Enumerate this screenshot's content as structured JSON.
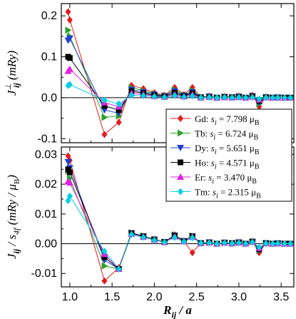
{
  "chart_data": [
    {
      "type": "line",
      "panel": "top",
      "ylabel": {
        "base": "J",
        "sup": "⊥",
        "sub": "ij",
        "unit": "(mRy)"
      },
      "ylim": [
        -0.11,
        0.23
      ],
      "xlim": [
        0.9,
        3.65
      ],
      "yticks": [
        -0.1,
        0.0,
        0.1,
        0.2
      ],
      "ytick_labels": [
        "-0.1",
        "0.0",
        "0.1",
        "0.2"
      ],
      "zero_line": true,
      "legend_position": "lower-right",
      "series": [
        {
          "name": "Gd",
          "moment": "s_i = 7.798 μ_B",
          "color": "#e41a1c",
          "marker": "diamond",
          "x": [
            0.98,
            1.0,
            1.41,
            1.58,
            1.73,
            1.87,
            2.0,
            2.12,
            2.24,
            2.35,
            2.45,
            2.55,
            2.65,
            2.74,
            2.83,
            2.92,
            3.0,
            3.08,
            3.16,
            3.24,
            3.32,
            3.4,
            3.46,
            3.54,
            3.61
          ],
          "y": [
            0.21,
            0.19,
            -0.09,
            -0.06,
            0.03,
            0.022,
            0.012,
            0.006,
            0.025,
            0.008,
            0.025,
            0.001,
            0.004,
            0.0,
            0.003,
            0.001,
            0.004,
            0.0,
            0.006,
            -0.022,
            0.002,
            0.0,
            0.001,
            0.0,
            0.0
          ]
        },
        {
          "name": "Tb",
          "moment": "s_i = 6.724 μ_B",
          "color": "#2ca02c",
          "marker": "triangle-right",
          "x": [
            0.98,
            1.0,
            1.41,
            1.58,
            1.73,
            1.87,
            2.0,
            2.12,
            2.24,
            2.35,
            2.45,
            2.55,
            2.65,
            2.74,
            2.83,
            2.92,
            3.0,
            3.08,
            3.16,
            3.24,
            3.32,
            3.4,
            3.46,
            3.54,
            3.61
          ],
          "y": [
            0.165,
            0.15,
            -0.048,
            -0.045,
            0.025,
            0.017,
            0.01,
            0.005,
            0.02,
            0.006,
            0.018,
            0.001,
            0.003,
            0.0,
            0.002,
            0.001,
            0.003,
            0.0,
            0.005,
            -0.015,
            0.001,
            0.0,
            0.001,
            0.0,
            0.0
          ]
        },
        {
          "name": "Dy",
          "moment": "s_i = 5.651 μ_B",
          "color": "#1f3fcf",
          "marker": "triangle-down",
          "x": [
            0.98,
            1.0,
            1.41,
            1.58,
            1.73,
            1.87,
            2.0,
            2.12,
            2.24,
            2.35,
            2.45,
            2.55,
            2.65,
            2.74,
            2.83,
            2.92,
            3.0,
            3.08,
            3.16,
            3.24,
            3.32,
            3.4,
            3.46,
            3.54,
            3.61
          ],
          "y": [
            0.14,
            0.145,
            -0.03,
            -0.038,
            0.02,
            0.014,
            0.008,
            0.004,
            0.016,
            0.005,
            0.014,
            0.001,
            0.003,
            0.0,
            0.002,
            0.001,
            0.003,
            0.0,
            0.004,
            -0.012,
            0.001,
            0.0,
            0.001,
            0.0,
            0.0
          ]
        },
        {
          "name": "Ho",
          "moment": "s_i = 4.571 μ_B",
          "color": "#000000",
          "marker": "square",
          "x": [
            0.98,
            1.0,
            1.41,
            1.58,
            1.73,
            1.87,
            2.0,
            2.12,
            2.24,
            2.35,
            2.45,
            2.55,
            2.65,
            2.74,
            2.83,
            2.92,
            3.0,
            3.08,
            3.16,
            3.24,
            3.32,
            3.4,
            3.46,
            3.54,
            3.61
          ],
          "y": [
            0.1,
            0.097,
            -0.02,
            -0.03,
            0.016,
            0.011,
            0.006,
            0.003,
            0.012,
            0.004,
            0.011,
            0.001,
            0.002,
            0.0,
            0.002,
            0.001,
            0.002,
            0.0,
            0.003,
            -0.008,
            0.001,
            0.0,
            0.0,
            0.0,
            0.0
          ]
        },
        {
          "name": "Er",
          "moment": "s_i = 3.470 μ_B",
          "color": "#e020e0",
          "marker": "triangle-up",
          "x": [
            0.98,
            1.0,
            1.41,
            1.58,
            1.73,
            1.87,
            2.0,
            2.12,
            2.24,
            2.35,
            2.45,
            2.55,
            2.65,
            2.74,
            2.83,
            2.92,
            3.0,
            3.08,
            3.16,
            3.24,
            3.32,
            3.4,
            3.46,
            3.54,
            3.61
          ],
          "y": [
            0.065,
            0.07,
            -0.012,
            -0.022,
            0.011,
            0.008,
            0.004,
            0.002,
            0.008,
            0.003,
            0.008,
            0.0,
            0.002,
            0.0,
            0.001,
            0.0,
            0.002,
            0.0,
            0.002,
            -0.005,
            0.001,
            0.0,
            0.0,
            0.0,
            0.0
          ]
        },
        {
          "name": "Tm",
          "moment": "s_i = 2.315 μ_B",
          "color": "#00d0e0",
          "marker": "diamond",
          "x": [
            0.98,
            1.0,
            1.41,
            1.58,
            1.73,
            1.87,
            2.0,
            2.12,
            2.24,
            2.35,
            2.45,
            2.55,
            2.65,
            2.74,
            2.83,
            2.92,
            3.0,
            3.08,
            3.16,
            3.24,
            3.32,
            3.4,
            3.46,
            3.54,
            3.61
          ],
          "y": [
            0.03,
            0.032,
            -0.006,
            -0.015,
            0.006,
            0.005,
            0.003,
            0.001,
            0.005,
            0.002,
            0.004,
            0.0,
            0.001,
            0.0,
            0.001,
            0.0,
            0.001,
            0.0,
            0.001,
            -0.003,
            0.0,
            0.0,
            0.0,
            0.0,
            0.0
          ]
        }
      ]
    },
    {
      "type": "line",
      "panel": "bottom",
      "ylabel": {
        "base": "J",
        "sub": "ij",
        "divider": " / ",
        "base2": "s",
        "sub2": "4f",
        "unit": "(mRy / μ",
        "unit_sub": "B",
        "unit_close": ")"
      },
      "xlabel": {
        "base": "R",
        "sub": "ij",
        "rest": " / a"
      },
      "ylim": [
        -0.0145,
        0.0325
      ],
      "xlim": [
        0.9,
        3.65
      ],
      "yticks": [
        -0.01,
        0.0,
        0.01,
        0.02,
        0.03
      ],
      "ytick_labels": [
        "-0.01",
        "0.00",
        "0.01",
        "0.02",
        "0.03"
      ],
      "xticks": [
        1.0,
        1.5,
        2.0,
        2.5,
        3.0,
        3.5
      ],
      "xtick_labels": [
        "1.0",
        "1.5",
        "2.0",
        "2.5",
        "3.0",
        "3.5"
      ],
      "zero_line": true,
      "series": [
        {
          "name": "Gd",
          "color": "#e41a1c",
          "marker": "diamond",
          "x": [
            0.98,
            1.0,
            1.41,
            1.58,
            1.73,
            1.87,
            2.0,
            2.12,
            2.24,
            2.35,
            2.45,
            2.55,
            2.65,
            2.74,
            2.83,
            2.92,
            3.0,
            3.08,
            3.16,
            3.24,
            3.32,
            3.4,
            3.46,
            3.54,
            3.61
          ],
          "y": [
            0.0295,
            0.028,
            -0.0125,
            -0.008,
            0.0035,
            0.0025,
            0.0015,
            0.0005,
            0.003,
            0.0008,
            -0.003,
            0.0002,
            0.0005,
            0.0,
            0.0004,
            0.0,
            0.0005,
            0.0,
            0.0008,
            -0.003,
            0.0002,
            0.0,
            0.0001,
            0.0,
            0.0
          ]
        },
        {
          "name": "Tb",
          "color": "#2ca02c",
          "marker": "triangle-right",
          "x": [
            0.98,
            1.0,
            1.41,
            1.58,
            1.73,
            1.87,
            2.0,
            2.12,
            2.24,
            2.35,
            2.45,
            2.55,
            2.65,
            2.74,
            2.83,
            2.92,
            3.0,
            3.08,
            3.16,
            3.24,
            3.32,
            3.4,
            3.46,
            3.54,
            3.61
          ],
          "y": [
            0.0245,
            0.022,
            -0.0075,
            -0.0085,
            0.0037,
            0.0026,
            0.0015,
            0.0006,
            0.003,
            0.0009,
            0.0027,
            0.0002,
            0.0004,
            0.0,
            0.0003,
            0.0001,
            0.0004,
            0.0,
            0.0007,
            -0.0023,
            0.0001,
            0.0,
            0.0001,
            0.0,
            0.0
          ]
        },
        {
          "name": "Dy",
          "color": "#1f3fcf",
          "marker": "triangle-down",
          "x": [
            0.98,
            1.0,
            1.41,
            1.58,
            1.73,
            1.87,
            2.0,
            2.12,
            2.24,
            2.35,
            2.45,
            2.55,
            2.65,
            2.74,
            2.83,
            2.92,
            3.0,
            3.08,
            3.16,
            3.24,
            3.32,
            3.4,
            3.46,
            3.54,
            3.61
          ],
          "y": [
            0.0275,
            0.0255,
            -0.0055,
            -0.0085,
            0.0036,
            0.0025,
            0.0014,
            0.0006,
            0.0028,
            0.0009,
            0.0025,
            0.0002,
            0.0005,
            0.0,
            0.0003,
            0.0002,
            0.0005,
            0.0,
            0.0007,
            -0.0021,
            0.0002,
            0.0,
            0.0002,
            0.0,
            0.0
          ]
        },
        {
          "name": "Ho",
          "color": "#000000",
          "marker": "square",
          "x": [
            0.98,
            1.0,
            1.41,
            1.58,
            1.73,
            1.87,
            2.0,
            2.12,
            2.24,
            2.35,
            2.45,
            2.55,
            2.65,
            2.74,
            2.83,
            2.92,
            3.0,
            3.08,
            3.16,
            3.24,
            3.32,
            3.4,
            3.46,
            3.54,
            3.61
          ],
          "y": [
            0.025,
            0.024,
            -0.0045,
            -0.0085,
            0.0035,
            0.0025,
            0.0014,
            0.0006,
            0.0027,
            0.0009,
            0.0025,
            0.0002,
            0.0004,
            0.0,
            0.0004,
            0.0002,
            0.0004,
            0.0,
            0.0007,
            -0.0018,
            0.0002,
            0.0,
            0.0001,
            0.0,
            0.0
          ]
        },
        {
          "name": "Er",
          "color": "#e020e0",
          "marker": "triangle-up",
          "x": [
            0.98,
            1.0,
            1.41,
            1.58,
            1.73,
            1.87,
            2.0,
            2.12,
            2.24,
            2.35,
            2.45,
            2.55,
            2.65,
            2.74,
            2.83,
            2.92,
            3.0,
            3.08,
            3.16,
            3.24,
            3.32,
            3.4,
            3.46,
            3.54,
            3.61
          ],
          "y": [
            0.021,
            0.0205,
            -0.0035,
            -0.0085,
            0.0033,
            0.0023,
            0.0013,
            0.0005,
            0.0024,
            0.0008,
            0.0023,
            0.0002,
            0.0004,
            0.0,
            0.0003,
            0.0001,
            0.0004,
            0.0,
            0.0006,
            -0.0015,
            0.0001,
            0.0,
            0.0001,
            0.0,
            0.0
          ]
        },
        {
          "name": "Tm",
          "color": "#00d0e0",
          "marker": "diamond",
          "x": [
            0.98,
            1.0,
            1.41,
            1.58,
            1.73,
            1.87,
            2.0,
            2.12,
            2.24,
            2.35,
            2.45,
            2.55,
            2.65,
            2.74,
            2.83,
            2.92,
            3.0,
            3.08,
            3.16,
            3.24,
            3.32,
            3.4,
            3.46,
            3.54,
            3.61
          ],
          "y": [
            0.0145,
            0.016,
            -0.0025,
            -0.0085,
            0.0031,
            0.0022,
            0.0012,
            0.0005,
            0.0021,
            0.0007,
            0.002,
            0.0002,
            0.0003,
            0.0,
            0.0003,
            0.0001,
            0.0003,
            0.0,
            0.0005,
            -0.0012,
            0.0001,
            0.0,
            0.0001,
            0.0,
            0.0
          ]
        }
      ]
    }
  ]
}
